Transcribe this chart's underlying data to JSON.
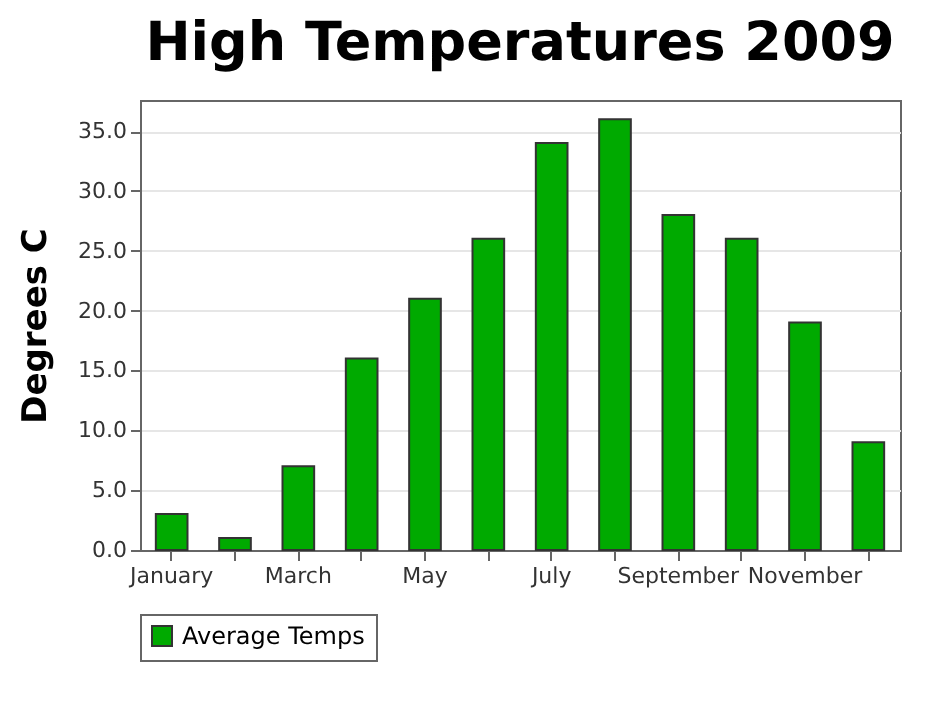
{
  "chart_data": {
    "type": "bar",
    "title": "High Temperatures 2009",
    "ylabel": "Degrees C",
    "categories": [
      "January",
      null,
      "March",
      null,
      "May",
      null,
      "July",
      null,
      "September",
      null,
      "November",
      null
    ],
    "series": [
      {
        "name": "Average Temps",
        "color": "#00aa00",
        "values": [
          3,
          1,
          7,
          16,
          21,
          26,
          34,
          36,
          28,
          26,
          19,
          9
        ]
      }
    ],
    "ylim": [
      0,
      37.6
    ],
    "yticks": [
      {
        "value": 0,
        "label": "0.0"
      },
      {
        "value": 5,
        "label": "5.0"
      },
      {
        "value": 10,
        "label": "10.0"
      },
      {
        "value": 15,
        "label": "15.0"
      },
      {
        "value": 20,
        "label": "20.0"
      },
      {
        "value": 25,
        "label": "25.0"
      },
      {
        "value": 30,
        "label": "30.0"
      },
      {
        "value": 35,
        "label": "35.0"
      }
    ],
    "grid": "y",
    "legend": "bottom"
  }
}
